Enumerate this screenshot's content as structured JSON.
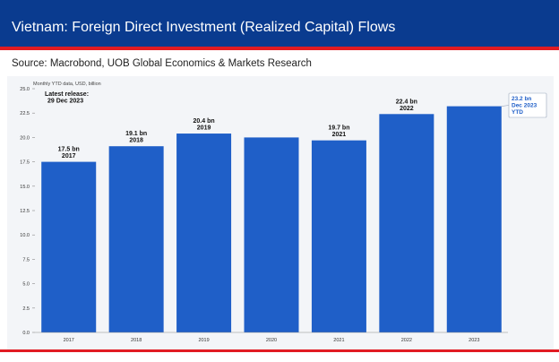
{
  "header": {
    "title": "Vietnam: Foreign Direct Investment (Realized Capital) Flows"
  },
  "source": "Source: Macrobond, UOB Global Economics & Markets Research",
  "colors": {
    "header_bg": "#0a3b8f",
    "accent_red": "#e11b22",
    "bar": "#1f5fc8",
    "callout_text": "#1f5fc8"
  },
  "chart_data": {
    "type": "bar",
    "subtitle": "Monthly YTD data, USD, billion",
    "categories": [
      "2017",
      "2018",
      "2019",
      "2020",
      "2021",
      "2022",
      "2023"
    ],
    "values": [
      17.5,
      19.1,
      20.4,
      20.0,
      19.7,
      22.4,
      23.2
    ],
    "bar_labels": [
      "17.5 bn|2017",
      "19.1 bn|2018",
      "20.4 bn|2019",
      "",
      "19.7 bn|2021",
      "22.4 bn|2022",
      ""
    ],
    "callout": "23.2 bn|Dec 2023|YTD",
    "annotation": "Latest release:|29 Dec 2023",
    "ylim": [
      0,
      25
    ],
    "yticks": [
      "0.0",
      "2.5",
      "5.0",
      "7.5",
      "10.0",
      "12.5",
      "15.0",
      "17.5",
      "20.0",
      "22.5",
      "25.0"
    ],
    "grid": false,
    "legend": "none"
  }
}
